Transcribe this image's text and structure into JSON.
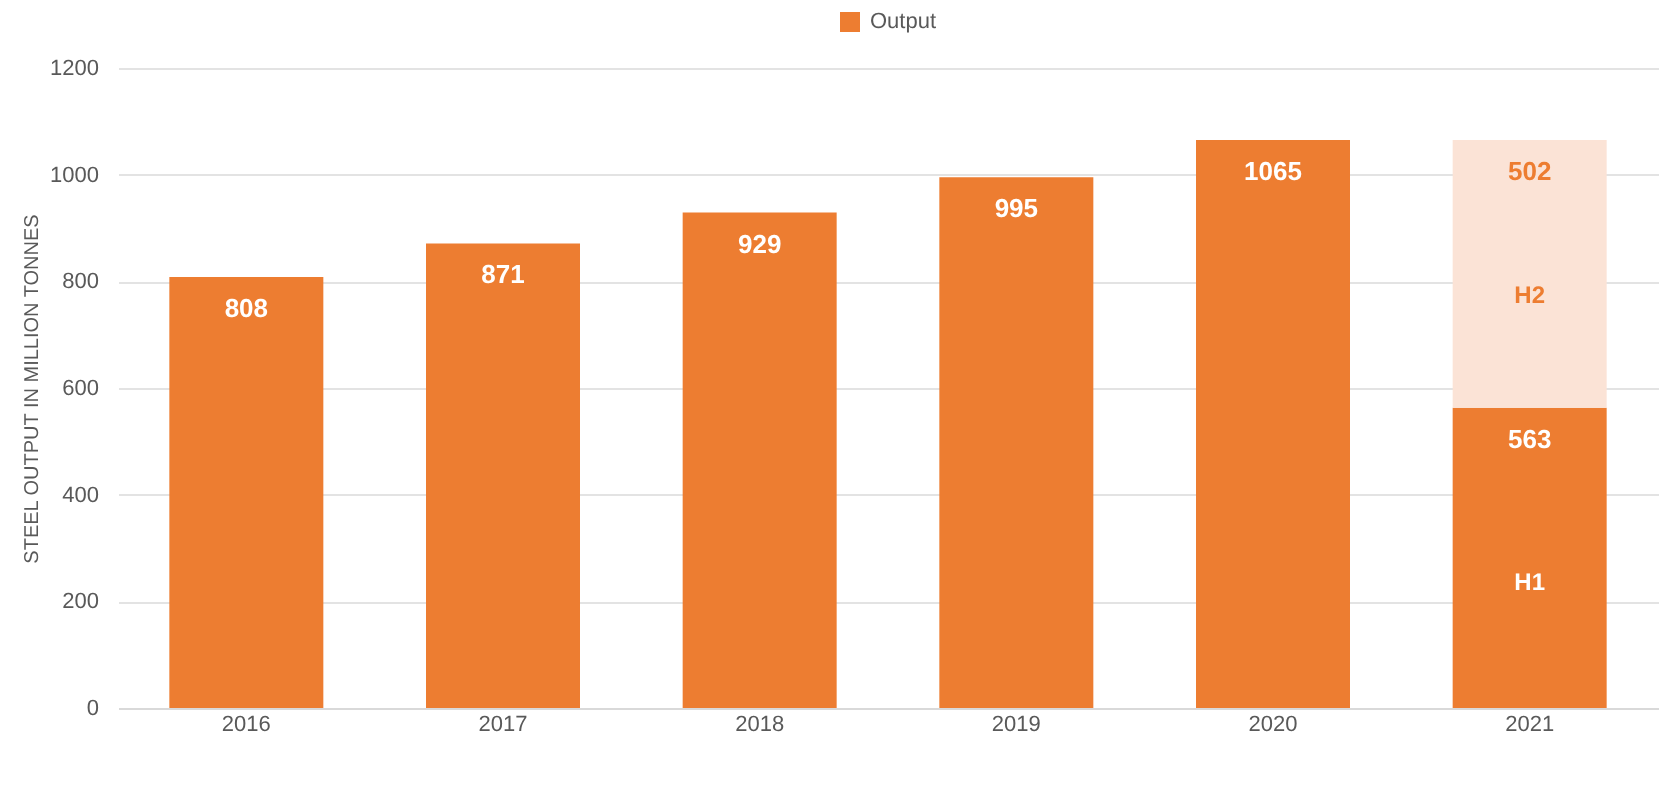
{
  "chart_data": {
    "type": "bar",
    "stacked": true,
    "ylabel": "STEEL OUTPUT IN MILLION TONNES",
    "categories": [
      "2016",
      "2017",
      "2018",
      "2019",
      "2020",
      "2021"
    ],
    "series": [
      {
        "name": "Output",
        "color": "#ed7d31",
        "values": [
          808,
          871,
          929,
          995,
          1065,
          563
        ]
      },
      {
        "color": "#fbe3d6",
        "values": [
          null,
          null,
          null,
          null,
          null,
          502
        ]
      }
    ],
    "data_labels": true,
    "ylim": [
      0,
      1200
    ],
    "yticks": [
      0,
      200,
      400,
      600,
      800,
      1000,
      1200
    ],
    "grid": "y",
    "legend": "top",
    "annotations": [
      "H1",
      "H2"
    ]
  }
}
